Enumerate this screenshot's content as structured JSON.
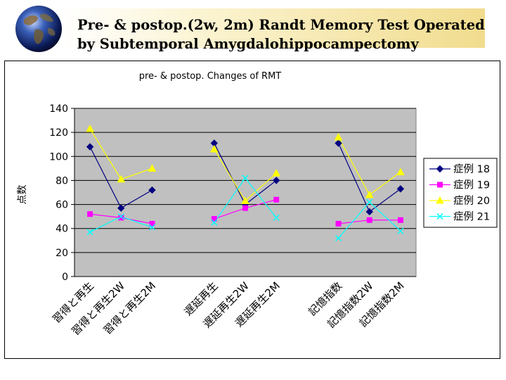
{
  "slide": {
    "title_line1": "Pre- & postop.(2w, 2m) Randt Memory Test Operated",
    "title_line2": "by Subtemporal Amygdalohippocampectomy"
  },
  "colors": {
    "plot_background": "#c0c0c0",
    "header_band": "#f1dc8e"
  },
  "chart_data": {
    "type": "line",
    "title": "pre- & postop. Changes of RMT",
    "ylabel": "点数",
    "xlabel": "",
    "ylim": [
      0,
      140
    ],
    "yticks": [
      0,
      20,
      40,
      60,
      80,
      100,
      120,
      140
    ],
    "grid": true,
    "legend_position": "right",
    "categories": [
      "習得と再生",
      "習得と再生2W",
      "習得と再生2M",
      "",
      "遅延再生",
      "遅延再生2W",
      "遅延再生2M",
      "",
      "記憶指数",
      "記憶指数2W",
      "記憶指数2M"
    ],
    "series": [
      {
        "name": "症例 18",
        "color": "#000080",
        "marker": "diamond",
        "values": [
          108,
          57,
          72,
          null,
          111,
          60,
          80,
          null,
          111,
          54,
          73
        ]
      },
      {
        "name": "症例 19",
        "color": "#ff00ff",
        "marker": "square",
        "values": [
          52,
          49,
          44,
          null,
          48,
          57,
          64,
          null,
          44,
          47,
          47
        ]
      },
      {
        "name": "症例 20",
        "color": "#ffff00",
        "marker": "triangle",
        "values": [
          123,
          81,
          90,
          null,
          106,
          63,
          86,
          null,
          116,
          68,
          87
        ]
      },
      {
        "name": "症例 21",
        "color": "#00ffff",
        "marker": "x",
        "values": [
          37,
          50,
          41,
          null,
          45,
          82,
          49,
          null,
          32,
          62,
          38
        ]
      }
    ]
  }
}
